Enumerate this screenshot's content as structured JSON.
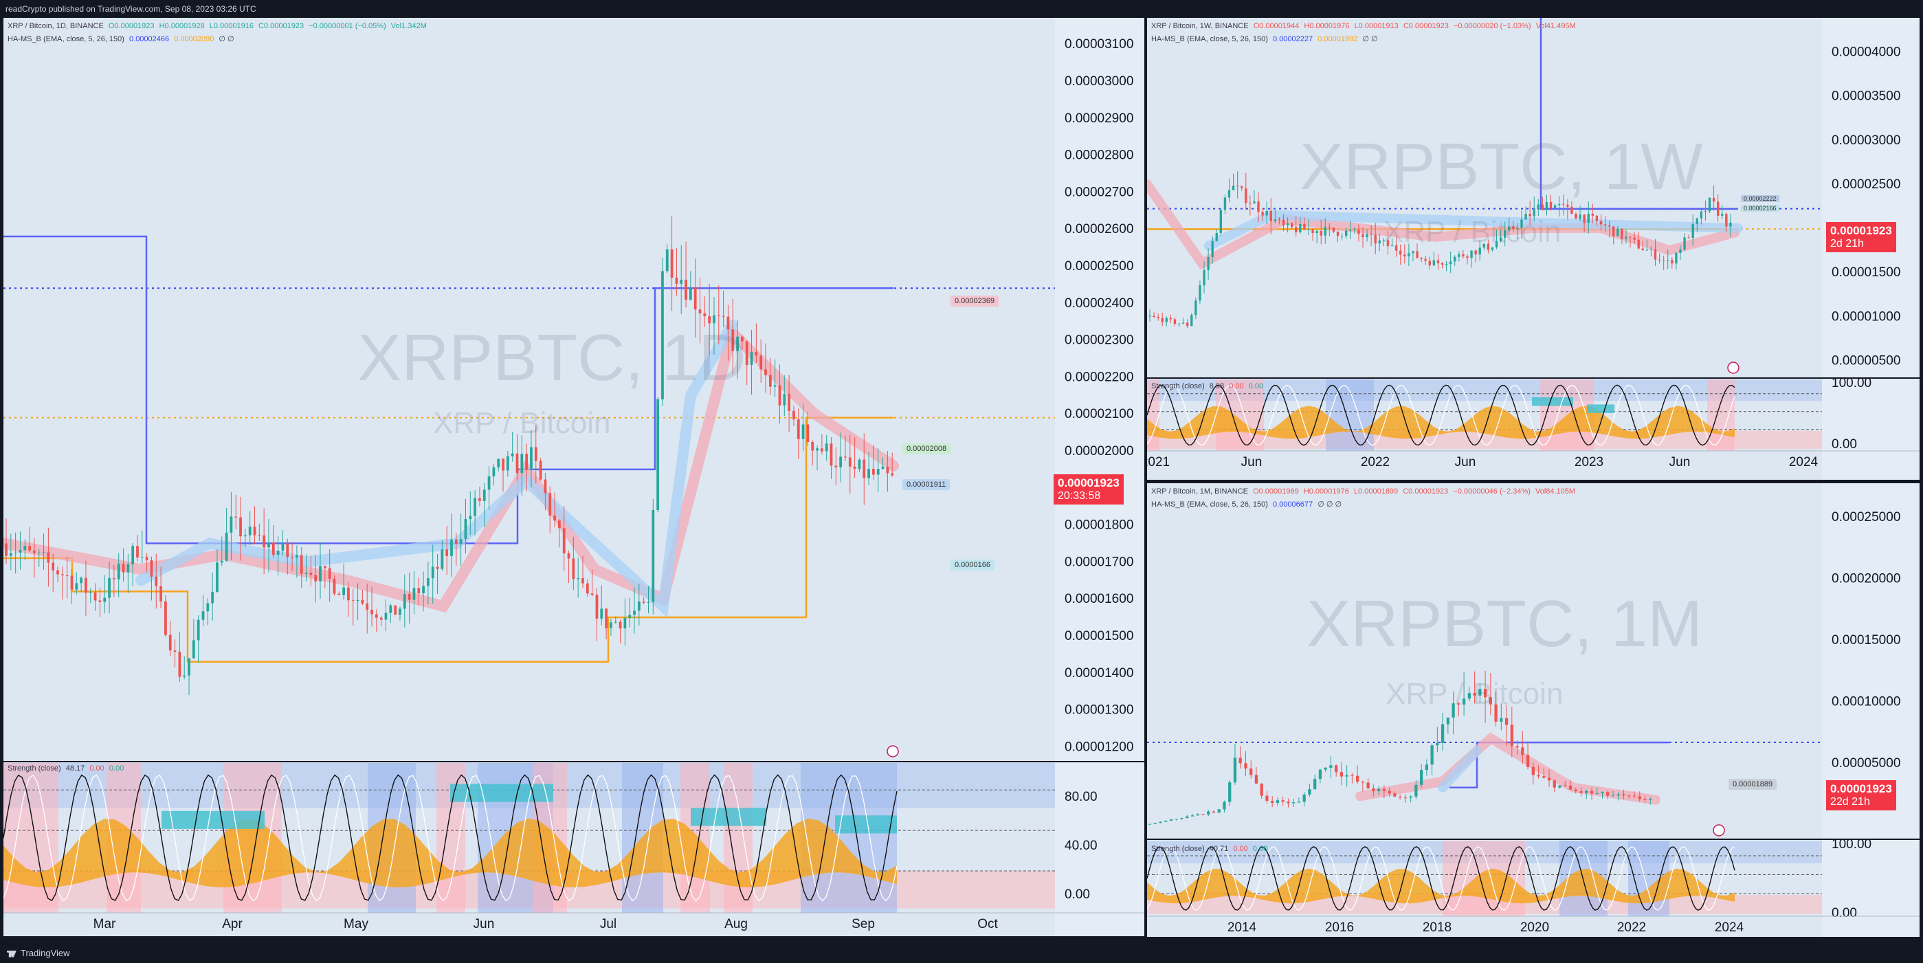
{
  "header": {
    "published": "readCrypto published on TradingView.com, Sep 08, 2023 03:26 UTC"
  },
  "footer": {
    "brand": "TradingView"
  },
  "colors": {
    "accent_blue": "#5b63f5",
    "accent_orange": "#f7a21b",
    "up": "#26a69a",
    "down": "#ef5350",
    "price_red": "#f23645"
  },
  "daily": {
    "title": "XRP / Bitcoin, 1D, BINANCE",
    "open": "O0.00001923",
    "high": "H0.00001928",
    "low": "L0.00001916",
    "close": "C0.00001923",
    "change": "−0.00000001 (−0.05%)",
    "volume": "Vol1.342M",
    "indicator": "HA-MS_B (EMA, close, 5, 26, 150)",
    "ind_v1": "0.00002466",
    "ind_v2": "0.00002090",
    "ind_sym": "∅ ∅",
    "watermark": "XRPBTC, 1D",
    "watermark_sub": "XRP / Bitcoin",
    "price_tag": "0.00001923",
    "countdown": "20:33:58",
    "tag_green": "0.00002008",
    "tag_blue": "0.00001911",
    "tag_pink": "0.00002369",
    "tag_cyan": "0.0000166",
    "strength_label": "Strength (close)",
    "strength_val": "48.17",
    "strength_r": "0.00",
    "strength_g": "0.00",
    "yticks": [
      "0.00003100",
      "0.00003000",
      "0.00002900",
      "0.00002800",
      "0.00002700",
      "0.00002600",
      "0.00002500",
      "0.00002400",
      "0.00002300",
      "0.00002200",
      "0.00002100",
      "0.00002000",
      "0.00001800",
      "0.00001700",
      "0.00001600",
      "0.00001500",
      "0.00001400",
      "0.00001300",
      "0.00001200"
    ],
    "sticks": [
      "80.00",
      "40.00",
      "0.00"
    ],
    "xticks": [
      "Mar",
      "Apr",
      "May",
      "Jun",
      "Jul",
      "Aug",
      "Sep",
      "Oct"
    ]
  },
  "weekly": {
    "title": "XRP / Bitcoin, 1W, BINANCE",
    "open": "O0.00001944",
    "high": "H0.00001976",
    "low": "L0.00001913",
    "close": "C0.00001923",
    "change": "−0.00000020 (−1.03%)",
    "volume": "Vol41.495M",
    "indicator": "HA-MS_B (EMA, close, 5, 26, 150)",
    "ind_v1": "0.00002227",
    "ind_v2": "0.00001992",
    "ind_sym": "∅ ∅",
    "watermark": "XRPBTC, 1W",
    "watermark_sub": "XRP / Bitcoin",
    "price_tag": "0.00001923",
    "countdown": "2d 21h",
    "tag_a": "0.00002222",
    "tag_b": "0.00002166",
    "strength_label": "Strength (close)",
    "strength_val": "8.98",
    "strength_r": "0.00",
    "strength_g": "0.00",
    "yticks": [
      "0.00004000",
      "0.00003500",
      "0.00003000",
      "0.00002500",
      "0.00001500",
      "0.00001000",
      "0.00000500"
    ],
    "sticks": [
      "100.00",
      "0.00"
    ],
    "xticks": [
      "2021",
      "Jun",
      "2022",
      "Jun",
      "2023",
      "Jun",
      "2024"
    ]
  },
  "monthly": {
    "title": "XRP / Bitcoin, 1M, BINANCE",
    "open": "O0.00001969",
    "high": "H0.00001976",
    "low": "L0.00001899",
    "close": "C0.00001923",
    "change": "−0.00000046 (−2.34%)",
    "volume": "Vol84.105M",
    "indicator": "HA-MS_B (EMA, close, 5, 26, 150)",
    "ind_v1": "0.00006677",
    "ind_v2": "",
    "ind_sym": "∅ ∅ ∅",
    "watermark": "XRPBTC, 1M",
    "watermark_sub": "XRP / Bitcoin",
    "price_tag": "0.00001923",
    "countdown": "22d 21h",
    "tag_a": "0.00001889",
    "strength_label": "Strength (close)",
    "strength_val": "40.71",
    "strength_r": "0.00",
    "strength_g": "0.00",
    "yticks": [
      "0.00025000",
      "0.00020000",
      "0.00015000",
      "0.00010000",
      "0.00005000"
    ],
    "sticks": [
      "100.00",
      "0.00"
    ],
    "xticks": [
      "2014",
      "2016",
      "2018",
      "2020",
      "2022",
      "2024"
    ]
  },
  "chart_data": [
    {
      "type": "candlestick",
      "title": "XRP / Bitcoin, 1D, BINANCE",
      "ylim": [
        1.15e-05,
        3.15e-05
      ],
      "x": [
        "Mar",
        "Apr",
        "May",
        "Jun",
        "Jul",
        "Aug",
        "Sep"
      ],
      "close_approx": [
        1.7e-05,
        1.75e-05,
        1.55e-05,
        2e-05,
        1.55e-05,
        2.5e-05,
        2.05e-05,
        1.923e-05
      ],
      "levels": {
        "blue_dotted": 2.44e-05,
        "orange_dotted": 2.09e-05
      }
    },
    {
      "type": "candlestick",
      "title": "XRP / Bitcoin, 1W, BINANCE",
      "ylim": [
        3e-06,
        4.2e-05
      ],
      "x": [
        "2021",
        "Jun",
        "2022",
        "Jun",
        "2023",
        "Jun",
        "2024"
      ],
      "levels": {
        "blue_dotted": 2.222e-05,
        "orange_dotted": 1.992e-05
      }
    },
    {
      "type": "candlestick",
      "title": "XRP / Bitcoin, 1M, BINANCE",
      "ylim": [
        0.0,
        0.00026
      ],
      "x": [
        "2014",
        "2016",
        "2018",
        "2020",
        "2022",
        "2024"
      ],
      "levels": {
        "blue_dotted": 6.677e-05
      }
    }
  ]
}
